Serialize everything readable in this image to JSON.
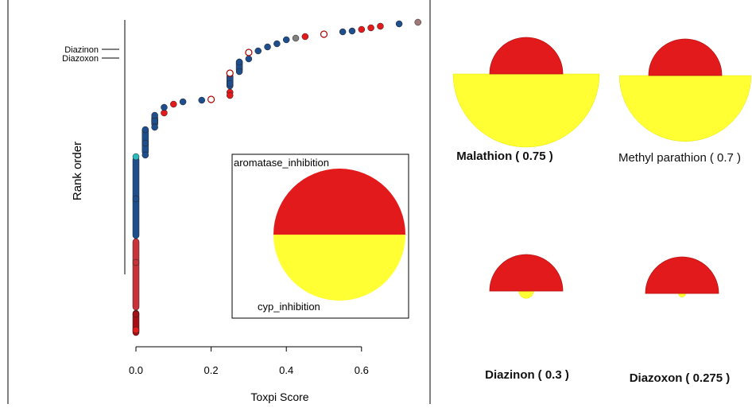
{
  "chart_data": [
    {
      "type": "scatter",
      "xlabel": "Toxpi Score",
      "ylabel": "Rank order",
      "xlim": [
        -0.02,
        0.76
      ],
      "xticks": [
        "0.0",
        "0.2",
        "0.4",
        "0.6"
      ],
      "xtick_values": [
        0.0,
        0.2,
        0.4,
        0.6
      ],
      "annotations": [
        "Diazinon",
        "Diazoxon"
      ],
      "colors": {
        "navy": "#1f4e8c",
        "red": "#e31a1c",
        "darkred": "#a50f15",
        "grey": "#7f7f7f",
        "open": "#ffffff",
        "teal": "#2bbbbb",
        "brown": "#a07878",
        "lightred": "#c8323a"
      },
      "points": [
        {
          "x": 0.0,
          "y": 415,
          "c": "red"
        },
        {
          "x": 0.0,
          "y": 395,
          "c": "darkred"
        },
        {
          "x": 0.0,
          "y": 330,
          "c": "lightred"
        },
        {
          "x": 0.0,
          "y": 250,
          "c": "navy"
        },
        {
          "x": 0.0,
          "y": 197,
          "c": "teal"
        },
        {
          "x": 0.025,
          "y": 195,
          "c": "navy"
        },
        {
          "x": 0.025,
          "y": 180,
          "c": "navy"
        },
        {
          "x": 0.025,
          "y": 163,
          "c": "navy"
        },
        {
          "x": 0.05,
          "y": 160,
          "c": "navy"
        },
        {
          "x": 0.05,
          "y": 152,
          "c": "navy"
        },
        {
          "x": 0.05,
          "y": 145,
          "c": "navy"
        },
        {
          "x": 0.075,
          "y": 142,
          "c": "red"
        },
        {
          "x": 0.075,
          "y": 135,
          "c": "navy"
        },
        {
          "x": 0.1,
          "y": 131,
          "c": "red"
        },
        {
          "x": 0.125,
          "y": 128,
          "c": "navy"
        },
        {
          "x": 0.175,
          "y": 126,
          "c": "navy"
        },
        {
          "x": 0.2,
          "y": 125,
          "c": "open"
        },
        {
          "x": 0.25,
          "y": 120,
          "c": "red"
        },
        {
          "x": 0.25,
          "y": 105,
          "c": "navy"
        },
        {
          "x": 0.25,
          "y": 92,
          "c": "open"
        },
        {
          "x": 0.275,
          "y": 90,
          "c": "navy"
        },
        {
          "x": 0.275,
          "y": 78,
          "c": "navy"
        },
        {
          "x": 0.3,
          "y": 74,
          "c": "navy"
        },
        {
          "x": 0.3,
          "y": 66,
          "c": "open"
        },
        {
          "x": 0.325,
          "y": 64,
          "c": "navy"
        },
        {
          "x": 0.35,
          "y": 59,
          "c": "navy"
        },
        {
          "x": 0.375,
          "y": 55,
          "c": "navy"
        },
        {
          "x": 0.4,
          "y": 50,
          "c": "navy"
        },
        {
          "x": 0.425,
          "y": 48,
          "c": "grey"
        },
        {
          "x": 0.45,
          "y": 46,
          "c": "red"
        },
        {
          "x": 0.5,
          "y": 43,
          "c": "open"
        },
        {
          "x": 0.55,
          "y": 40,
          "c": "navy"
        },
        {
          "x": 0.575,
          "y": 39,
          "c": "navy"
        },
        {
          "x": 0.6,
          "y": 37,
          "c": "red"
        },
        {
          "x": 0.625,
          "y": 35,
          "c": "red"
        },
        {
          "x": 0.65,
          "y": 33,
          "c": "red"
        },
        {
          "x": 0.7,
          "y": 30,
          "c": "navy"
        },
        {
          "x": 0.75,
          "y": 28,
          "c": "brown"
        }
      ],
      "columns": [
        {
          "x": 0.0,
          "top": 197,
          "bottom": 422,
          "segments": [
            {
              "from": 197,
              "to": 300,
              "c": "navy"
            },
            {
              "from": 300,
              "to": 390,
              "c": "lightred"
            },
            {
              "from": 390,
              "to": 422,
              "c": "darkred"
            }
          ]
        },
        {
          "x": 0.025,
          "top": 160,
          "bottom": 195,
          "segments": [
            {
              "from": 160,
              "to": 195,
              "c": "navy"
            }
          ]
        },
        {
          "x": 0.05,
          "top": 144,
          "bottom": 160,
          "segments": [
            {
              "from": 144,
              "to": 160,
              "c": "navy"
            }
          ]
        },
        {
          "x": 0.25,
          "top": 92,
          "bottom": 120,
          "segments": [
            {
              "from": 92,
              "to": 112,
              "c": "navy"
            },
            {
              "from": 112,
              "to": 120,
              "c": "red"
            }
          ]
        },
        {
          "x": 0.275,
          "top": 74,
          "bottom": 92,
          "segments": [
            {
              "from": 74,
              "to": 92,
              "c": "navy"
            }
          ]
        }
      ],
      "inset": {
        "type": "pie",
        "slices": [
          {
            "label": "aromatase_inhibition",
            "fraction": 0.5,
            "color": "#e31a1c"
          },
          {
            "label": "cyp_inhibition",
            "fraction": 0.5,
            "color": "#ffff33"
          }
        ]
      }
    },
    {
      "type": "pie",
      "slice_colors": [
        "#e31a1c",
        "#ffff33"
      ],
      "charts": [
        {
          "name": "Malathion",
          "score": "( 0.75 )",
          "bold": true,
          "aromatase_inhibition": 0.5,
          "cyp_inhibition": 1.0
        },
        {
          "name": "Methyl parathion",
          "score": "( 0.7 )",
          "bold": false,
          "aromatase_inhibition": 0.5,
          "cyp_inhibition": 0.9
        },
        {
          "name": "Diazinon",
          "score": "( 0.3 )",
          "bold": true,
          "aromatase_inhibition": 0.5,
          "cyp_inhibition": 0.1
        },
        {
          "name": "Diazoxon",
          "score": "( 0.275 )",
          "bold": true,
          "aromatase_inhibition": 0.5,
          "cyp_inhibition": 0.05
        }
      ]
    }
  ]
}
